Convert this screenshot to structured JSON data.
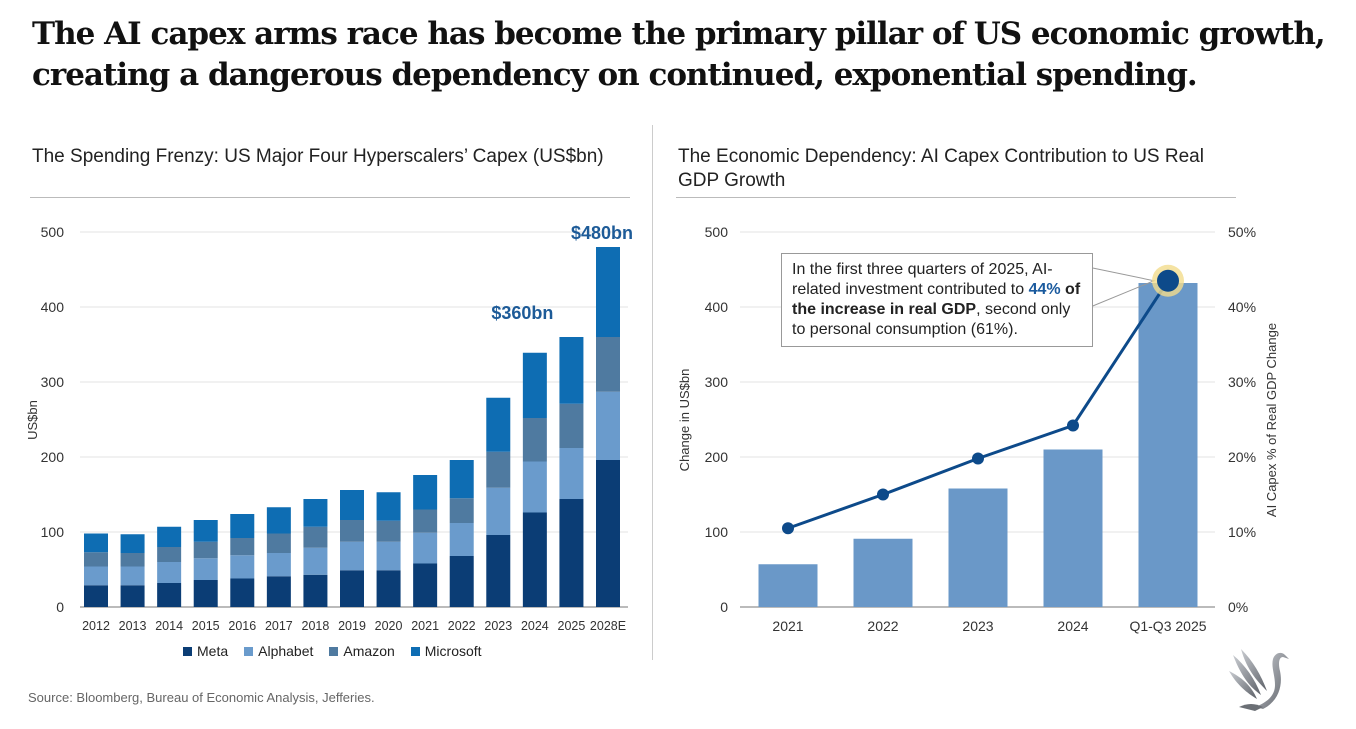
{
  "title": "The AI capex arms race has become the primary pillar of US economic growth, creating a dangerous dependency on continued, exponential spending.",
  "source": "Source: Bloomberg, Bureau of Economic Analysis, Jefferies.",
  "chart_data": [
    {
      "type": "bar",
      "stacked": true,
      "title": "The Spending Frenzy: US Major Four Hyperscalers’ Capex (US$bn)",
      "ylabel": "US$bn",
      "xlabel": "",
      "ylim": [
        0,
        500
      ],
      "yticks": [
        0,
        100,
        200,
        300,
        400,
        500
      ],
      "grid": true,
      "legend": "bottom",
      "categories": [
        "2012",
        "2013",
        "2014",
        "2015",
        "2016",
        "2017",
        "2018",
        "2019",
        "2020",
        "2021",
        "2022",
        "2023",
        "2024",
        "2025",
        "2028E"
      ],
      "series": [
        {
          "name": "Meta",
          "color": "#0b3d75",
          "values": [
            29,
            29,
            32,
            36,
            38,
            41,
            43,
            49,
            49,
            58,
            68,
            96,
            126,
            144,
            196
          ]
        },
        {
          "name": "Alphabet",
          "color": "#6a9bcc",
          "values": [
            25,
            25,
            28,
            29,
            31,
            31,
            36,
            38,
            38,
            41,
            44,
            63,
            68,
            68,
            91
          ]
        },
        {
          "name": "Amazon",
          "color": "#4f7aa0",
          "values": [
            19,
            18,
            20,
            22,
            23,
            26,
            28,
            29,
            28,
            31,
            33,
            48,
            58,
            59,
            73
          ]
        },
        {
          "name": "Microsoft",
          "color": "#0e6db3",
          "values": [
            25,
            25,
            27,
            29,
            32,
            35,
            37,
            40,
            38,
            46,
            51,
            72,
            87,
            89,
            120
          ]
        }
      ],
      "annotations": [
        {
          "category": "2025",
          "text": "$360bn"
        },
        {
          "category": "2028E",
          "text": "$480bn"
        }
      ]
    },
    {
      "type": "bar",
      "title": "The Economic Dependency: AI Capex Contribution to US Real GDP Growth",
      "ylabel": "Change in US$bn",
      "y2label": "AI Capex % of Real GDP Change",
      "ylim": [
        0,
        500
      ],
      "y2lim": [
        0,
        50
      ],
      "yticks": [
        0,
        100,
        200,
        300,
        400,
        500
      ],
      "y2ticks": [
        "0%",
        "10%",
        "20%",
        "30%",
        "40%",
        "50%"
      ],
      "grid": true,
      "categories": [
        "2021",
        "2022",
        "2023",
        "2024",
        "Q1-Q3 2025"
      ],
      "series": [
        {
          "name": "Change in US$bn",
          "type": "bar",
          "color": "#6a98c8",
          "values": [
            57,
            91,
            158,
            210,
            432
          ]
        },
        {
          "name": "AI Capex % of Real GDP Change",
          "type": "line",
          "color": "#0d4a8a",
          "values": [
            10.5,
            15,
            19.8,
            24.2,
            43.5
          ]
        }
      ],
      "callout": {
        "line1": "In the first three quarters of 2025, AI-related investment contributed to ",
        "highlight": "44%",
        "bold": " of the increase in real GDP",
        "rest": ", second only to personal consumption (61%)."
      }
    }
  ]
}
